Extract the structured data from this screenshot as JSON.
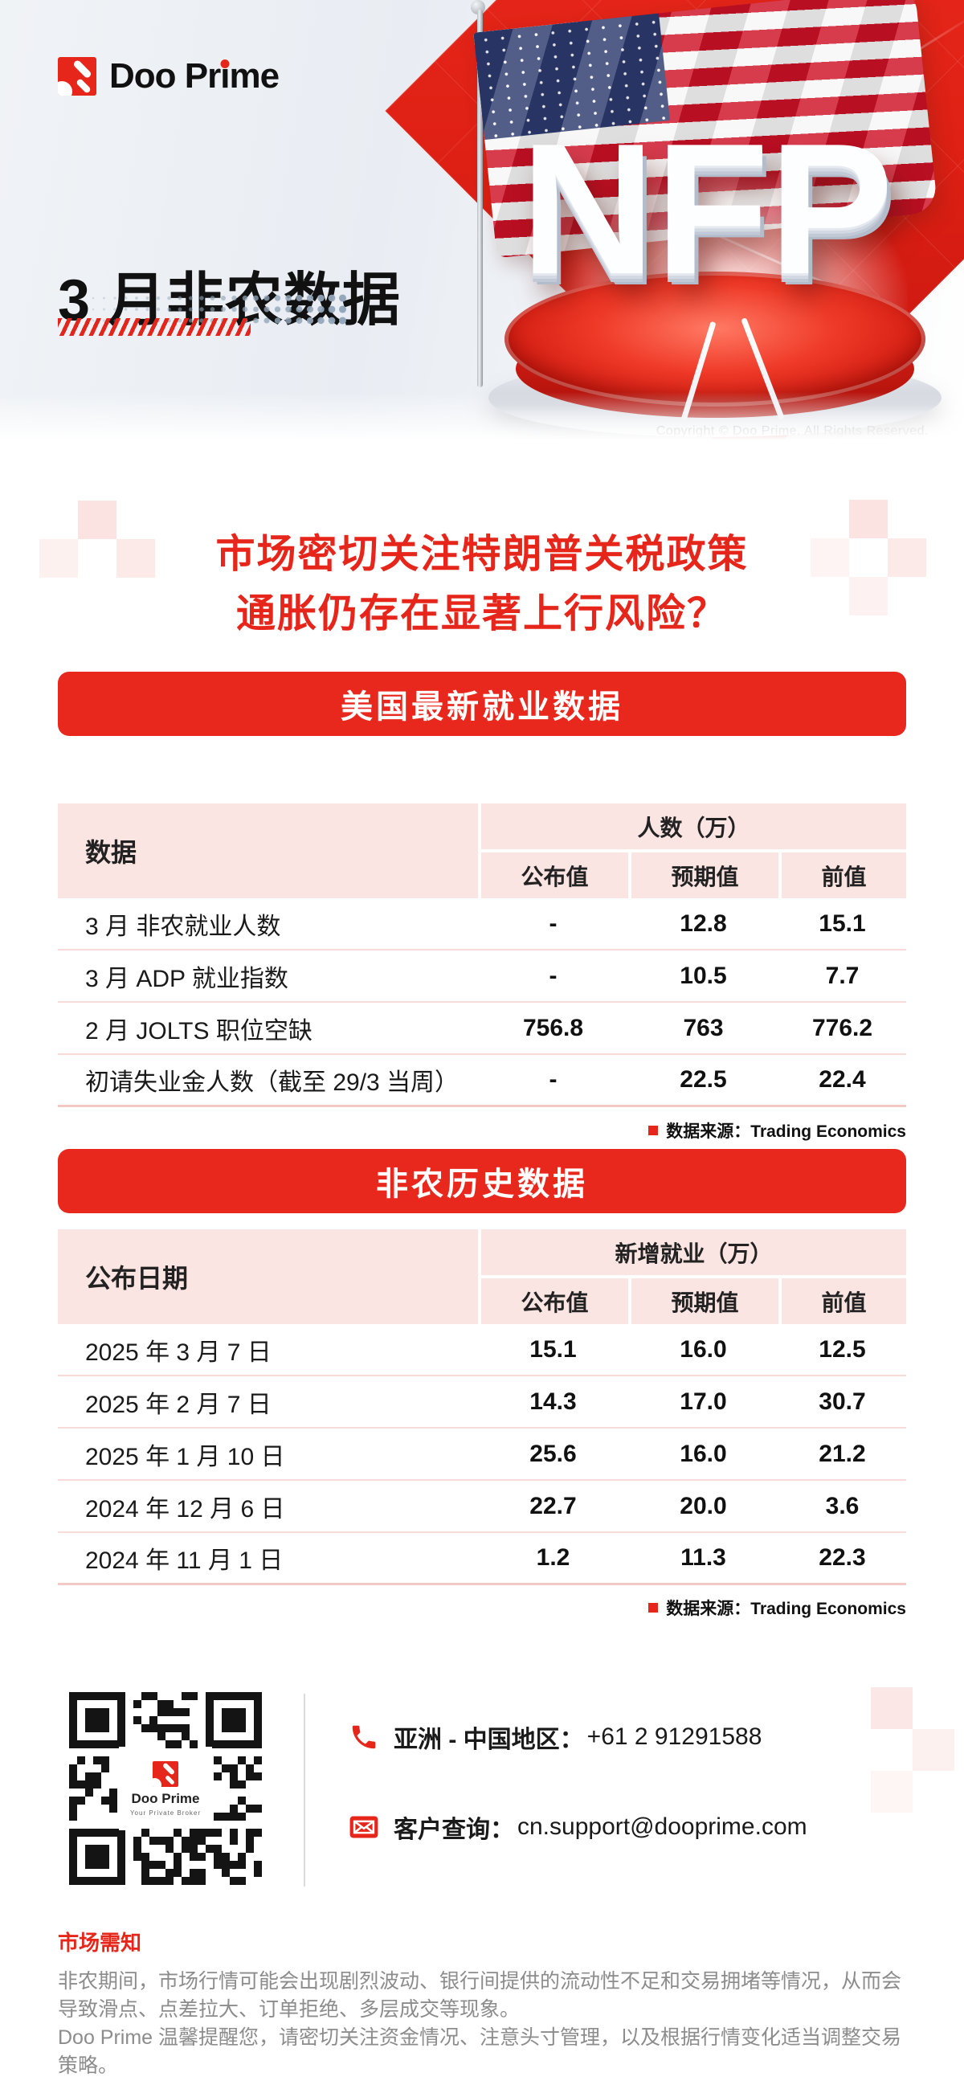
{
  "brand": {
    "name": "Doo Prime",
    "mark_a": "Doo Pr",
    "mark_i": "i",
    "mark_b": "me",
    "tagline": "Your Private Broker"
  },
  "hero": {
    "title": "3 月非农数据",
    "nfp": "NFP",
    "copyright": "Copyright © Doo Prime. All Rights Reserved."
  },
  "headline": {
    "line1": "市场密切关注特朗普关税政策",
    "line2": "通胀仍存在显著上行风险？"
  },
  "latest": {
    "banner": "美国最新就业数据",
    "header": {
      "col": "数据",
      "group": "人数（万）",
      "sub": [
        "公布值",
        "预期值",
        "前值"
      ]
    },
    "rows": [
      [
        "3 月 非农就业人数",
        "-",
        "12.8",
        "15.1"
      ],
      [
        "3 月 ADP 就业指数",
        "-",
        "10.5",
        "7.7"
      ],
      [
        "2 月 JOLTS 职位空缺",
        "756.8",
        "763",
        "776.2"
      ],
      [
        "初请失业金人数（截至 29/3 当周）",
        "-",
        "22.5",
        "22.4"
      ]
    ],
    "source": "数据来源：Trading Economics"
  },
  "history": {
    "banner": "非农历史数据",
    "header": {
      "col": "公布日期",
      "group": "新增就业（万）",
      "sub": [
        "公布值",
        "预期值",
        "前值"
      ]
    },
    "rows": [
      [
        "2025 年 3 月 7 日",
        "15.1",
        "16.0",
        "12.5"
      ],
      [
        "2025 年 2 月 7 日",
        "14.3",
        "17.0",
        "30.7"
      ],
      [
        "2025 年 1 月 10 日",
        "25.6",
        "16.0",
        "21.2"
      ],
      [
        "2024 年 12 月 6 日",
        "22.7",
        "20.0",
        "3.6"
      ],
      [
        "2024 年 11 月 1 日",
        "1.2",
        "11.3",
        "22.3"
      ]
    ],
    "source": "数据来源：Trading Economics"
  },
  "contact": {
    "phone_label": "亚洲 - 中国地区：",
    "phone_value": "+61 2 91291588",
    "email_label": "客户查询：",
    "email_value": "cn.support@dooprime.com"
  },
  "footer": {
    "title": "市场需知",
    "p1": "非农期间，市场行情可能会出现剧烈波动、银行间提供的流动性不足和交易拥堵等情况，从而会导致滑点、点差拉大、订单拒绝、多层成交等现象。",
    "p2": "Doo Prime 温馨提醒您，请密切关注资金情况、注意头寸管理，以及根据行情变化适当调整交易策略。"
  },
  "colors": {
    "brand_red": "#E7261B",
    "pink_header": "#FBE5E3",
    "text_dark": "#1A1A1A",
    "muted_gray": "#8C8C8C"
  }
}
